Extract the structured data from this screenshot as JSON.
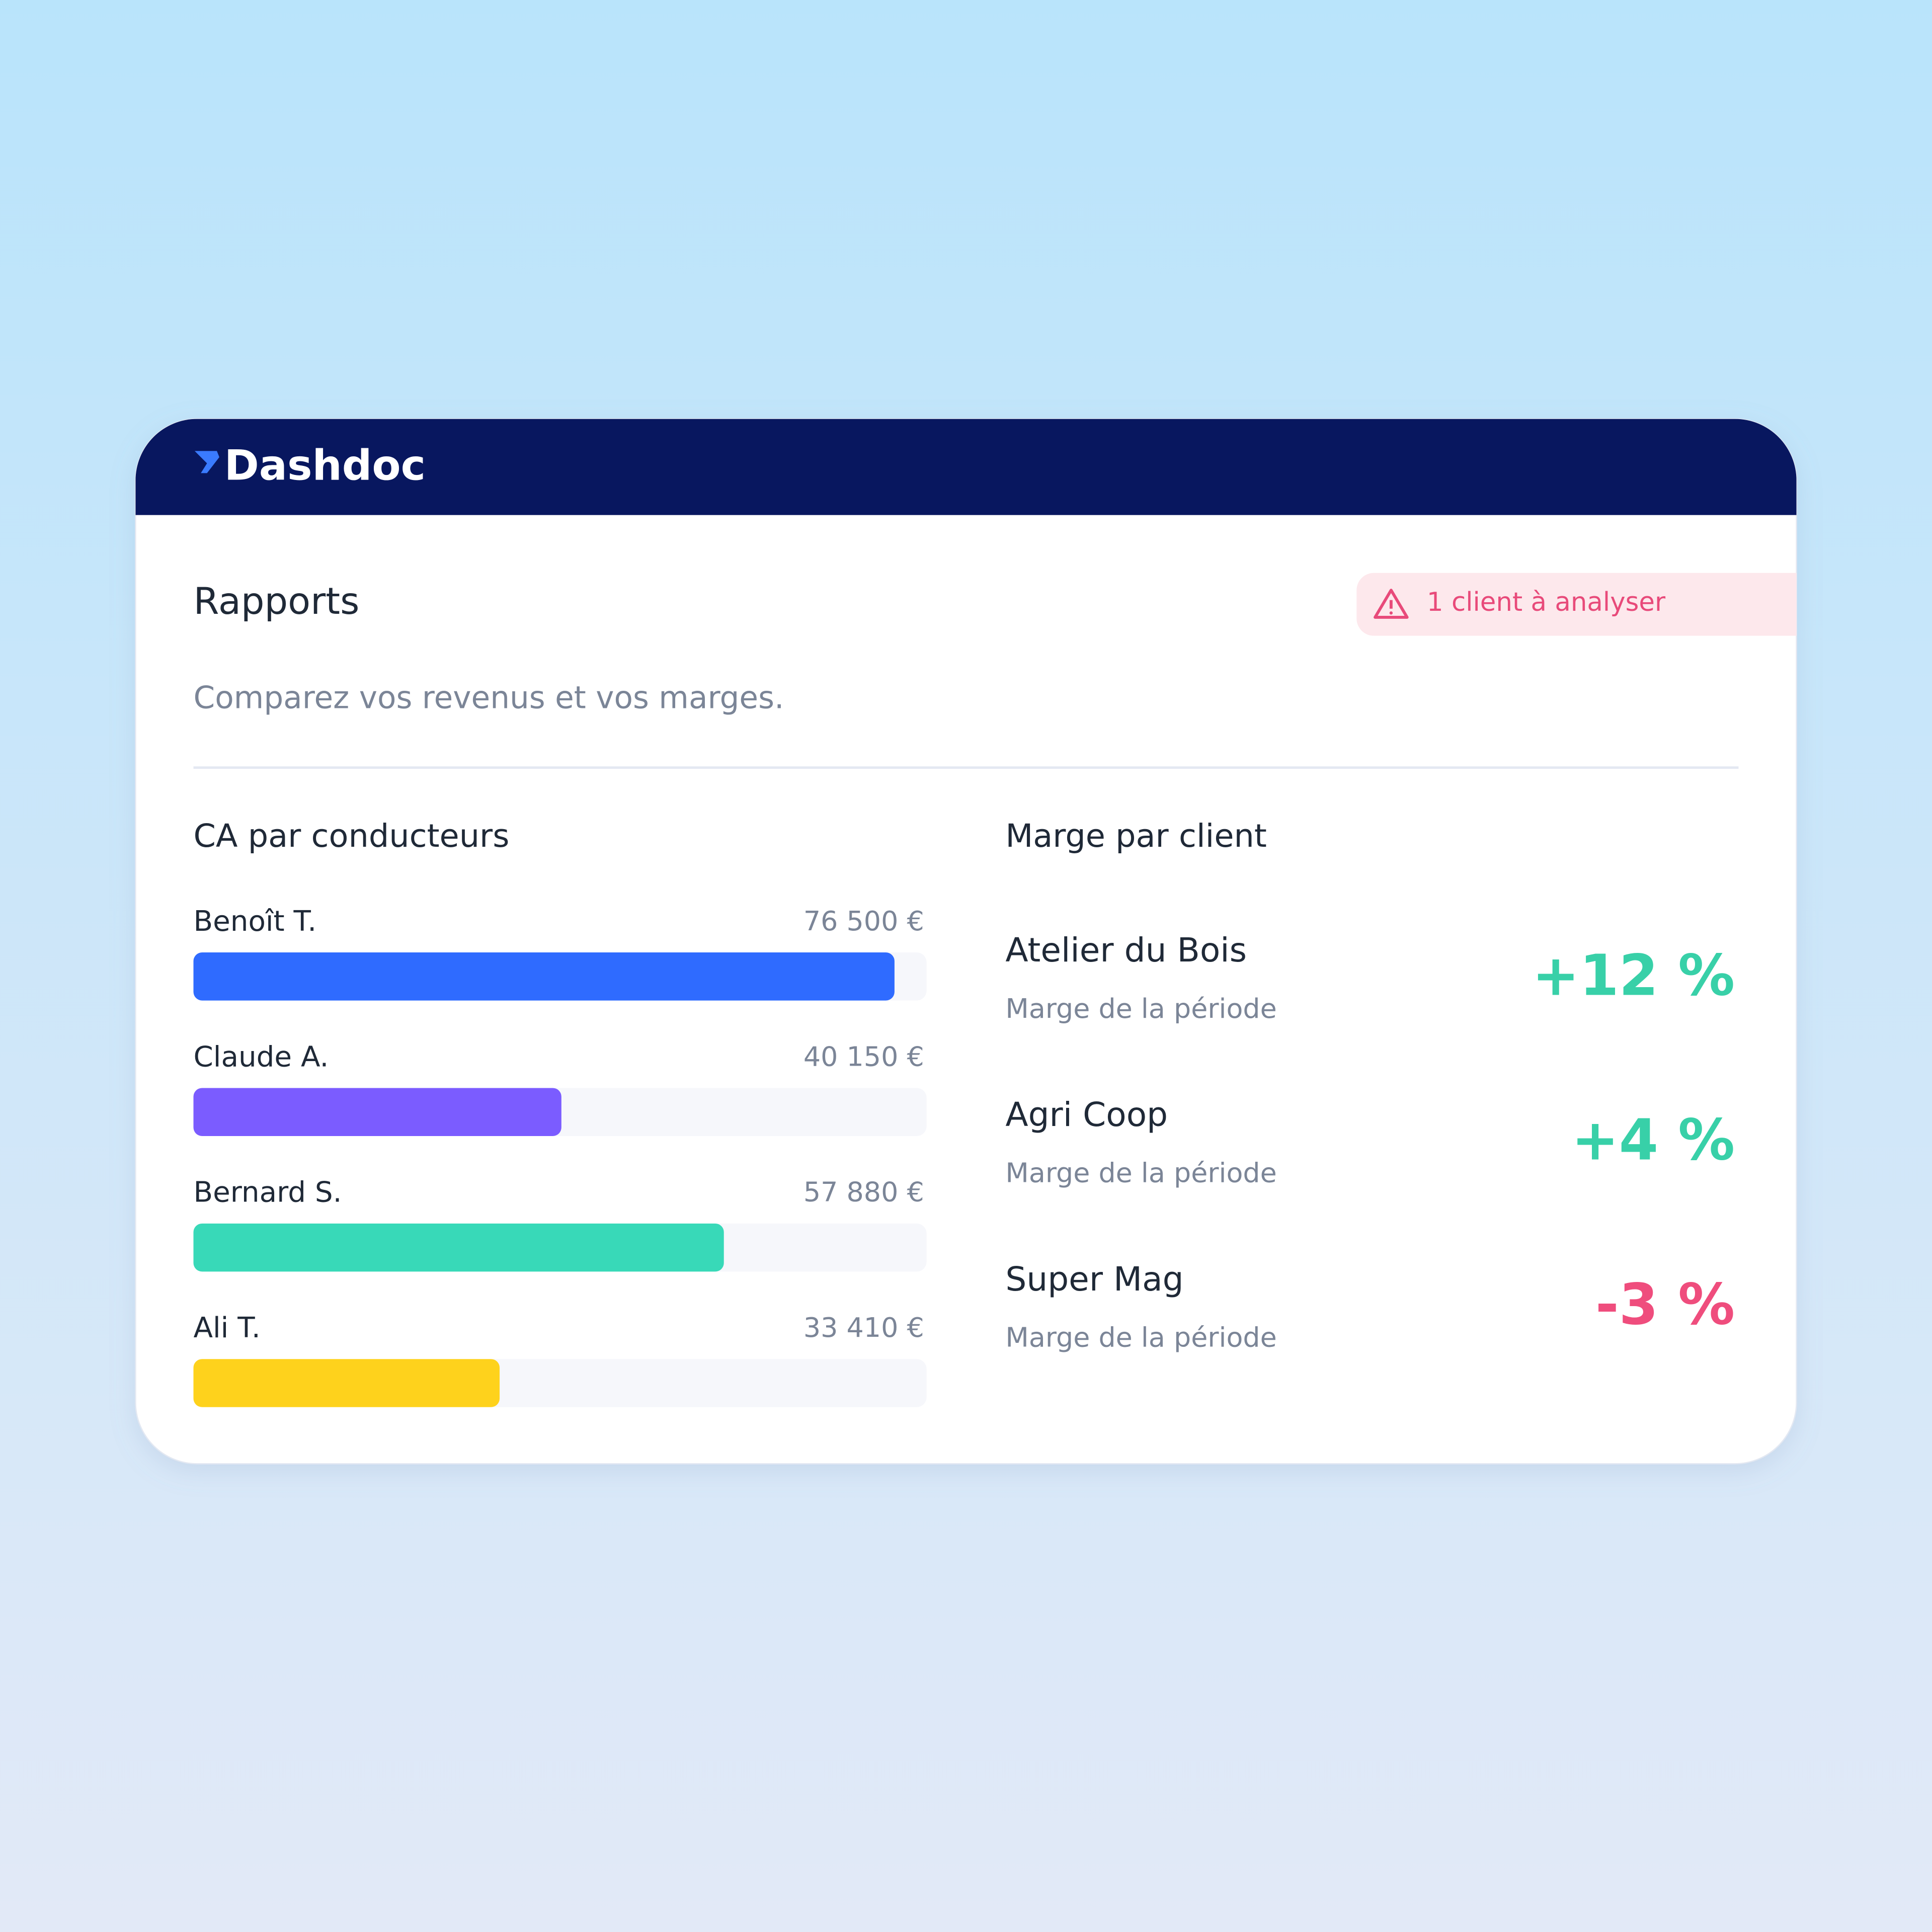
{
  "header": {
    "brand": "Dashdoc"
  },
  "page": {
    "title": "Rapports",
    "alert": "1 client à analyser",
    "subtitle": "Comparez vos revenus et vos marges."
  },
  "chart_data": {
    "type": "bar",
    "orientation": "horizontal",
    "title": "CA par conducteurs",
    "categories": [
      "Benoît T.",
      "Claude A.",
      "Bernard S.",
      "Ali T."
    ],
    "values": [
      76500,
      40150,
      57880,
      33410
    ],
    "value_labels": [
      "76 500 €",
      "40 150 €",
      "57 880 €",
      "33 410 €"
    ],
    "colors": [
      "#2f6bff",
      "#7b5cff",
      "#38d9b8",
      "#fed21c"
    ],
    "xlim": [
      0,
      80000
    ]
  },
  "margins": {
    "title": "Marge par client",
    "clients": [
      {
        "name": "Atelier du Bois",
        "caption": "Marge de la période",
        "value": "+12 %",
        "color": "#38d0a8"
      },
      {
        "name": "Agri Coop",
        "caption": "Marge de la période",
        "value": "+4 %",
        "color": "#38d0a8"
      },
      {
        "name": "Super Mag",
        "caption": "Marge de la période",
        "value": "-3 %",
        "color": "#ef4d7d"
      }
    ]
  }
}
